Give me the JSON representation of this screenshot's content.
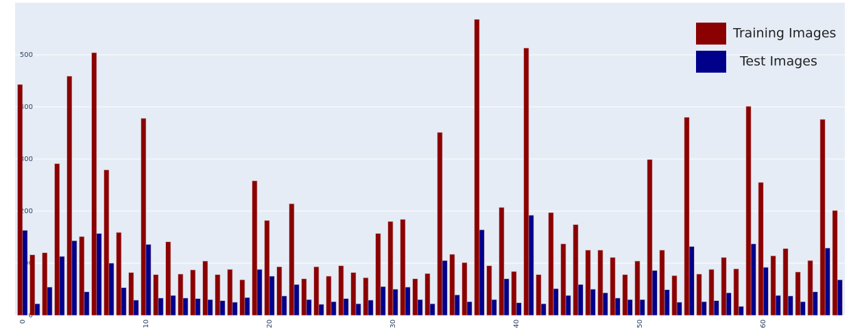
{
  "chart_data": {
    "type": "bar",
    "x": [
      0,
      1,
      2,
      3,
      4,
      5,
      6,
      7,
      8,
      9,
      10,
      11,
      12,
      13,
      14,
      15,
      16,
      17,
      18,
      19,
      20,
      21,
      22,
      23,
      24,
      25,
      26,
      27,
      28,
      29,
      30,
      31,
      32,
      33,
      34,
      35,
      36,
      37,
      38,
      39,
      40,
      41,
      42,
      43,
      44,
      45,
      46,
      47,
      48,
      49,
      50,
      51,
      52,
      53,
      54,
      55,
      56,
      57,
      58,
      59,
      60,
      61,
      62,
      63,
      64,
      65,
      66
    ],
    "series": [
      {
        "name": "Training Images",
        "color": "#8b0000",
        "values": [
          443,
          116,
          120,
          291,
          459,
          151,
          504,
          279,
          159,
          82,
          378,
          78,
          141,
          79,
          87,
          104,
          78,
          88,
          68,
          258,
          182,
          93,
          214,
          70,
          93,
          75,
          95,
          82,
          72,
          157,
          180,
          184,
          70,
          80,
          351,
          117,
          101,
          568,
          95,
          207,
          84,
          513,
          78,
          197,
          137,
          174,
          125,
          125,
          111,
          78,
          104,
          299,
          125,
          76,
          380,
          79,
          88,
          111,
          89,
          401,
          255,
          114,
          128,
          83,
          105,
          376,
          201
        ]
      },
      {
        "name": "Test Images",
        "color": "#00008b",
        "values": [
          163,
          22,
          54,
          113,
          143,
          45,
          157,
          100,
          53,
          29,
          136,
          33,
          38,
          33,
          32,
          30,
          28,
          25,
          34,
          88,
          75,
          37,
          59,
          30,
          21,
          26,
          32,
          22,
          29,
          55,
          50,
          54,
          30,
          22,
          105,
          39,
          26,
          164,
          30,
          70,
          24,
          192,
          22,
          51,
          38,
          59,
          50,
          43,
          33,
          30,
          30,
          86,
          49,
          25,
          132,
          26,
          28,
          43,
          17,
          137,
          92,
          38,
          37,
          26,
          45,
          129,
          68
        ]
      }
    ],
    "xlim": [
      -0.6,
      66.6
    ],
    "xticks": [
      0,
      10,
      20,
      30,
      40,
      50,
      60
    ],
    "ylim": [
      0,
      600
    ],
    "yticks": [
      0,
      100,
      200,
      300,
      400,
      500
    ],
    "grid": true,
    "legend": "top-right"
  }
}
